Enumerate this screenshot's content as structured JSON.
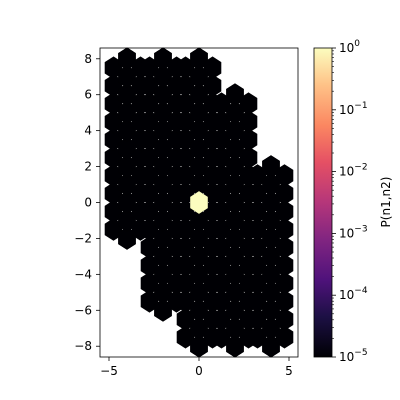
{
  "chart_data": {
    "type": "heatmap",
    "subtype": "hexbin",
    "title": "",
    "xlabel": "",
    "ylabel": "",
    "xlim": [
      -5.5,
      5.5
    ],
    "ylim": [
      -8.6,
      8.6
    ],
    "xticks": [
      -5,
      0,
      5
    ],
    "yticks": [
      -8,
      -6,
      -4,
      -2,
      0,
      2,
      4,
      6,
      8
    ],
    "grid": false,
    "colormap": "magma",
    "colorbar": {
      "label": "P(n1,n2)",
      "scale": "log",
      "range": [
        1e-05,
        1
      ],
      "ticks": [
        {
          "value": 1e-05,
          "base": "10",
          "exp": "−5"
        },
        {
          "value": 0.0001,
          "base": "10",
          "exp": "−4"
        },
        {
          "value": 0.001,
          "base": "10",
          "exp": "−3"
        },
        {
          "value": 0.01,
          "base": "10",
          "exp": "−2"
        },
        {
          "value": 0.1,
          "base": "10",
          "exp": "−1"
        },
        {
          "value": 1,
          "base": "10",
          "exp": "0"
        }
      ]
    },
    "columns": [
      {
        "x": -4,
        "y_min": -2,
        "y_max": 8,
        "value": 1e-05
      },
      {
        "x": -2,
        "y_min": -6,
        "y_max": 8,
        "value": 1e-05
      },
      {
        "x": 0,
        "y_min": -8,
        "y_max": 8,
        "value": 1e-05
      },
      {
        "x": 2,
        "y_min": -8,
        "y_max": 6,
        "value": 1e-05
      },
      {
        "x": 4,
        "y_min": -8,
        "y_max": 2,
        "value": 1e-05
      }
    ],
    "peak": {
      "x": 0,
      "y": 0,
      "value": 1
    }
  }
}
